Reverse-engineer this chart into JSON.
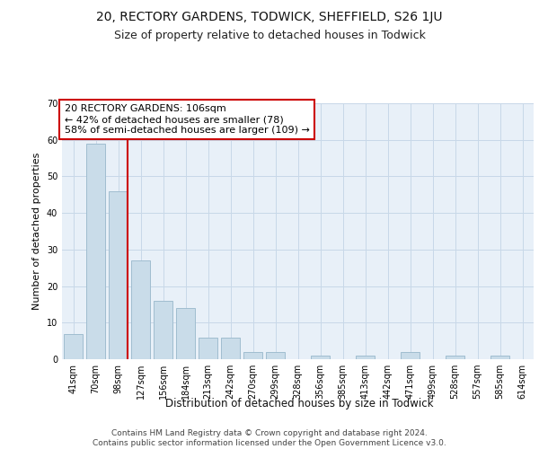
{
  "title1": "20, RECTORY GARDENS, TODWICK, SHEFFIELD, S26 1JU",
  "title2": "Size of property relative to detached houses in Todwick",
  "xlabel": "Distribution of detached houses by size in Todwick",
  "ylabel": "Number of detached properties",
  "categories": [
    "41sqm",
    "70sqm",
    "98sqm",
    "127sqm",
    "156sqm",
    "184sqm",
    "213sqm",
    "242sqm",
    "270sqm",
    "299sqm",
    "328sqm",
    "356sqm",
    "385sqm",
    "413sqm",
    "442sqm",
    "471sqm",
    "499sqm",
    "528sqm",
    "557sqm",
    "585sqm",
    "614sqm"
  ],
  "values": [
    7,
    59,
    46,
    27,
    16,
    14,
    6,
    6,
    2,
    2,
    0,
    1,
    0,
    1,
    0,
    2,
    0,
    1,
    0,
    1,
    0
  ],
  "bar_color": "#c9dce9",
  "bar_edge_color": "#a0bdd0",
  "vline_color": "#cc0000",
  "annotation_text": "20 RECTORY GARDENS: 106sqm\n← 42% of detached houses are smaller (78)\n58% of semi-detached houses are larger (109) →",
  "annotation_box_color": "#ffffff",
  "annotation_box_edge": "#cc0000",
  "ylim": [
    0,
    70
  ],
  "yticks": [
    0,
    10,
    20,
    30,
    40,
    50,
    60,
    70
  ],
  "grid_color": "#c8d8e8",
  "background_color": "#e8f0f8",
  "footer_text": "Contains HM Land Registry data © Crown copyright and database right 2024.\nContains public sector information licensed under the Open Government Licence v3.0.",
  "title1_fontsize": 10,
  "title2_fontsize": 9,
  "xlabel_fontsize": 8.5,
  "ylabel_fontsize": 8,
  "tick_fontsize": 7,
  "annotation_fontsize": 8,
  "footer_fontsize": 6.5
}
